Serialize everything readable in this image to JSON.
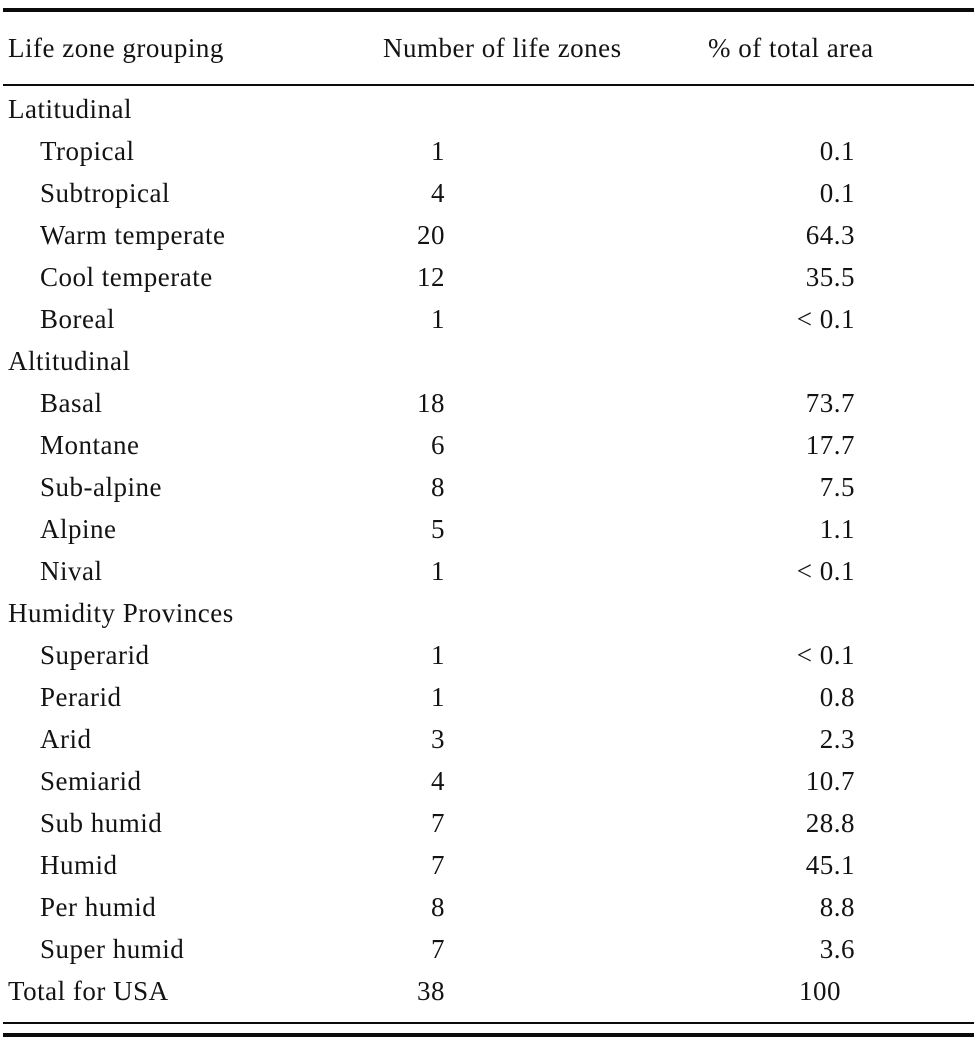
{
  "page": {
    "background_color": "#ffffff",
    "text_color": "#131313",
    "rule_color": "#0b0b0b"
  },
  "table": {
    "columns": [
      {
        "label": "Life zone grouping"
      },
      {
        "label": "Number of life zones"
      },
      {
        "label": "% of total area"
      }
    ],
    "rows": [
      {
        "label": "Latitudinal",
        "type": "group",
        "num": "",
        "pct": ""
      },
      {
        "label": "Tropical",
        "type": "item",
        "num": "1",
        "pct": "0.1"
      },
      {
        "label": "Subtropical",
        "type": "item",
        "num": "4",
        "pct": "0.1"
      },
      {
        "label": "Warm temperate",
        "type": "item",
        "num": "20",
        "pct": "64.3"
      },
      {
        "label": "Cool temperate",
        "type": "item",
        "num": "12",
        "pct": "35.5"
      },
      {
        "label": "Boreal",
        "type": "item",
        "num": "1",
        "pct": "< 0.1"
      },
      {
        "label": "Altitudinal",
        "type": "group",
        "num": "",
        "pct": ""
      },
      {
        "label": "Basal",
        "type": "item",
        "num": "18",
        "pct": "73.7"
      },
      {
        "label": "Montane",
        "type": "item",
        "num": "6",
        "pct": "17.7"
      },
      {
        "label": "Sub-alpine",
        "type": "item",
        "num": "8",
        "pct": "7.5"
      },
      {
        "label": "Alpine",
        "type": "item",
        "num": "5",
        "pct": "1.1"
      },
      {
        "label": "Nival",
        "type": "item",
        "num": "1",
        "pct": "< 0.1"
      },
      {
        "label": "Humidity Provinces",
        "type": "group",
        "num": "",
        "pct": ""
      },
      {
        "label": "Superarid",
        "type": "item",
        "num": "1",
        "pct": "< 0.1"
      },
      {
        "label": "Perarid",
        "type": "item",
        "num": "1",
        "pct": "0.8"
      },
      {
        "label": "Arid",
        "type": "item",
        "num": "3",
        "pct": "2.3"
      },
      {
        "label": "Semiarid",
        "type": "item",
        "num": "4",
        "pct": "10.7"
      },
      {
        "label": "Sub humid",
        "type": "item",
        "num": "7",
        "pct": "28.8"
      },
      {
        "label": "Humid",
        "type": "item",
        "num": "7",
        "pct": "45.1"
      },
      {
        "label": "Per humid",
        "type": "item",
        "num": "8",
        "pct": "8.8"
      },
      {
        "label": "Super humid",
        "type": "item",
        "num": "7",
        "pct": "3.6"
      },
      {
        "label": "Total for USA",
        "type": "total",
        "num": "38",
        "pct": "100"
      }
    ]
  }
}
